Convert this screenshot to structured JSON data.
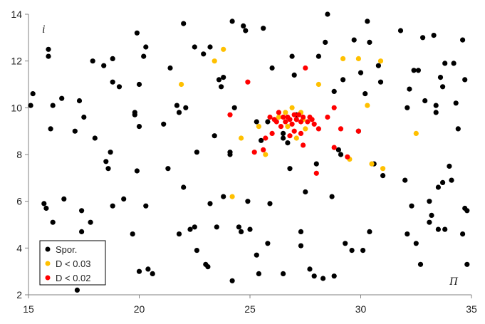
{
  "chart_data": {
    "type": "scatter",
    "xlabel": "Π",
    "ylabel": "i",
    "xlim": [
      15,
      35
    ],
    "ylim": [
      2,
      14
    ],
    "xticks": [
      15,
      20,
      25,
      30,
      35
    ],
    "yticks": [
      2,
      4,
      6,
      8,
      10,
      12,
      14
    ],
    "grid": false,
    "legend_placement": "bottom-left",
    "series": [
      {
        "name": "Spor.",
        "color": "#000000",
        "points": [
          [
            15.1,
            10.1
          ],
          [
            15.2,
            10.6
          ],
          [
            15.7,
            5.9
          ],
          [
            15.8,
            5.7
          ],
          [
            15.9,
            12.5
          ],
          [
            15.9,
            12.2
          ],
          [
            16.0,
            9.1
          ],
          [
            16.1,
            10.1
          ],
          [
            16.1,
            5.1
          ],
          [
            16.5,
            10.4
          ],
          [
            16.6,
            6.1
          ],
          [
            17.1,
            9.0
          ],
          [
            17.2,
            2.2
          ],
          [
            17.3,
            10.3
          ],
          [
            17.4,
            4.7
          ],
          [
            17.4,
            5.6
          ],
          [
            17.5,
            9.6
          ],
          [
            17.8,
            5.1
          ],
          [
            17.9,
            12.0
          ],
          [
            18.0,
            8.7
          ],
          [
            18.4,
            11.8
          ],
          [
            18.5,
            7.7
          ],
          [
            18.6,
            7.4
          ],
          [
            18.7,
            8.1
          ],
          [
            18.8,
            12.1
          ],
          [
            18.8,
            11.1
          ],
          [
            18.8,
            5.8
          ],
          [
            19.1,
            10.9
          ],
          [
            19.3,
            6.1
          ],
          [
            19.7,
            4.6
          ],
          [
            19.8,
            9.8
          ],
          [
            19.8,
            9.7
          ],
          [
            19.9,
            13.2
          ],
          [
            19.9,
            7.3
          ],
          [
            20.0,
            11.0
          ],
          [
            20.0,
            9.2
          ],
          [
            20.0,
            3.0
          ],
          [
            20.2,
            12.2
          ],
          [
            20.3,
            12.6
          ],
          [
            20.3,
            5.8
          ],
          [
            20.4,
            3.1
          ],
          [
            20.6,
            2.9
          ],
          [
            21.1,
            9.3
          ],
          [
            21.3,
            7.4
          ],
          [
            21.4,
            11.7
          ],
          [
            21.8,
            4.6
          ],
          [
            21.7,
            10.1
          ],
          [
            21.8,
            9.8
          ],
          [
            22.0,
            13.6
          ],
          [
            22.0,
            6.6
          ],
          [
            22.1,
            10.0
          ],
          [
            22.3,
            4.8
          ],
          [
            22.5,
            4.9
          ],
          [
            22.5,
            12.6
          ],
          [
            22.6,
            8.1
          ],
          [
            22.6,
            3.9
          ],
          [
            22.9,
            12.3
          ],
          [
            23.0,
            3.3
          ],
          [
            23.1,
            3.2
          ],
          [
            23.2,
            12.6
          ],
          [
            23.2,
            5.9
          ],
          [
            23.4,
            8.8
          ],
          [
            23.5,
            4.9
          ],
          [
            23.6,
            11.2
          ],
          [
            23.7,
            10.9
          ],
          [
            23.8,
            11.3
          ],
          [
            23.8,
            6.2
          ],
          [
            24.1,
            8.0
          ],
          [
            24.1,
            8.1
          ],
          [
            24.2,
            2.6
          ],
          [
            24.2,
            13.7
          ],
          [
            24.3,
            10.0
          ],
          [
            24.5,
            4.9
          ],
          [
            24.6,
            4.7
          ],
          [
            24.7,
            13.5
          ],
          [
            24.8,
            13.3
          ],
          [
            24.9,
            6.0
          ],
          [
            25.0,
            4.8
          ],
          [
            25.3,
            9.4
          ],
          [
            25.3,
            3.7
          ],
          [
            25.4,
            2.9
          ],
          [
            25.5,
            8.6
          ],
          [
            25.6,
            13.4
          ],
          [
            25.8,
            9.4
          ],
          [
            25.8,
            4.2
          ],
          [
            25.9,
            5.9
          ],
          [
            26.0,
            11.7
          ],
          [
            26.5,
            8.9
          ],
          [
            26.5,
            8.7
          ],
          [
            26.5,
            2.9
          ],
          [
            26.7,
            8.5
          ],
          [
            26.8,
            7.4
          ],
          [
            26.9,
            12.2
          ],
          [
            27.0,
            11.4
          ],
          [
            27.1,
            9.7
          ],
          [
            27.3,
            4.7
          ],
          [
            27.3,
            4.1
          ],
          [
            27.5,
            6.4
          ],
          [
            27.7,
            3.1
          ],
          [
            27.9,
            2.8
          ],
          [
            28.0,
            7.6
          ],
          [
            28.1,
            12.2
          ],
          [
            28.3,
            2.7
          ],
          [
            28.4,
            12.8
          ],
          [
            28.5,
            14.0
          ],
          [
            28.7,
            6.2
          ],
          [
            28.8,
            10.7
          ],
          [
            28.8,
            2.8
          ],
          [
            29.0,
            8.2
          ],
          [
            29.1,
            8.0
          ],
          [
            29.2,
            11.2
          ],
          [
            29.3,
            4.2
          ],
          [
            29.6,
            3.9
          ],
          [
            29.7,
            12.9
          ],
          [
            29.9,
            9.0
          ],
          [
            30.0,
            11.5
          ],
          [
            30.1,
            3.9
          ],
          [
            30.2,
            10.6
          ],
          [
            30.3,
            13.7
          ],
          [
            30.4,
            12.8
          ],
          [
            30.4,
            4.7
          ],
          [
            30.6,
            7.6
          ],
          [
            30.8,
            11.8
          ],
          [
            30.9,
            11.1
          ],
          [
            31.0,
            7.1
          ],
          [
            31.8,
            13.3
          ],
          [
            32.0,
            6.9
          ],
          [
            32.1,
            10.0
          ],
          [
            32.1,
            4.6
          ],
          [
            32.2,
            10.8
          ],
          [
            32.3,
            5.8
          ],
          [
            32.4,
            11.6
          ],
          [
            32.5,
            4.2
          ],
          [
            32.6,
            11.6
          ],
          [
            32.7,
            3.3
          ],
          [
            32.8,
            13.0
          ],
          [
            32.9,
            10.3
          ],
          [
            33.1,
            5.1
          ],
          [
            33.1,
            6.0
          ],
          [
            33.2,
            5.4
          ],
          [
            33.3,
            13.1
          ],
          [
            33.4,
            10.1
          ],
          [
            33.4,
            9.8
          ],
          [
            33.5,
            4.8
          ],
          [
            33.5,
            6.6
          ],
          [
            33.6,
            11.3
          ],
          [
            33.7,
            10.9
          ],
          [
            33.7,
            6.8
          ],
          [
            33.8,
            11.9
          ],
          [
            33.8,
            4.8
          ],
          [
            34.0,
            7.5
          ],
          [
            34.1,
            6.9
          ],
          [
            34.2,
            11.9
          ],
          [
            34.3,
            10.2
          ],
          [
            34.4,
            9.1
          ],
          [
            34.6,
            12.9
          ],
          [
            34.6,
            4.6
          ],
          [
            34.7,
            11.2
          ],
          [
            34.7,
            5.7
          ],
          [
            34.8,
            5.6
          ],
          [
            34.8,
            3.3
          ]
        ]
      },
      {
        "name": "D < 0.03",
        "color": "#ffc000",
        "points": [
          [
            21.9,
            11.0
          ],
          [
            23.4,
            12.0
          ],
          [
            23.8,
            12.5
          ],
          [
            24.2,
            6.2
          ],
          [
            24.6,
            8.7
          ],
          [
            25.4,
            9.2
          ],
          [
            25.7,
            8.0
          ],
          [
            26.3,
            9.6
          ],
          [
            26.6,
            9.8
          ],
          [
            26.7,
            9.2
          ],
          [
            26.9,
            10.0
          ],
          [
            27.1,
            8.7
          ],
          [
            27.3,
            9.8
          ],
          [
            27.4,
            9.5
          ],
          [
            27.5,
            9.1
          ],
          [
            28.1,
            11.0
          ],
          [
            29.2,
            12.1
          ],
          [
            29.5,
            7.8
          ],
          [
            29.9,
            12.1
          ],
          [
            30.3,
            10.1
          ],
          [
            30.5,
            7.6
          ],
          [
            30.9,
            12.0
          ],
          [
            31.0,
            7.4
          ],
          [
            32.5,
            8.9
          ]
        ]
      },
      {
        "name": "D < 0.02",
        "color": "#ff0000",
        "points": [
          [
            24.1,
            9.7
          ],
          [
            24.9,
            11.1
          ],
          [
            25.2,
            8.1
          ],
          [
            25.6,
            8.2
          ],
          [
            25.7,
            8.7
          ],
          [
            25.9,
            9.6
          ],
          [
            26.0,
            8.9
          ],
          [
            26.1,
            9.5
          ],
          [
            26.2,
            9.4
          ],
          [
            26.3,
            9.8
          ],
          [
            26.4,
            9.2
          ],
          [
            26.5,
            9.6
          ],
          [
            26.6,
            9.4
          ],
          [
            26.7,
            9.6
          ],
          [
            26.8,
            9.5
          ],
          [
            26.8,
            8.8
          ],
          [
            26.9,
            9.3
          ],
          [
            27.0,
            9.7
          ],
          [
            27.0,
            9.0
          ],
          [
            27.1,
            9.5
          ],
          [
            27.2,
            9.7
          ],
          [
            27.3,
            9.4
          ],
          [
            27.3,
            8.9
          ],
          [
            27.4,
            9.6
          ],
          [
            27.4,
            8.4
          ],
          [
            27.5,
            11.7
          ],
          [
            27.6,
            9.4
          ],
          [
            27.7,
            9.6
          ],
          [
            27.8,
            9.5
          ],
          [
            27.9,
            9.3
          ],
          [
            28.0,
            7.2
          ],
          [
            28.1,
            9.1
          ],
          [
            28.5,
            9.6
          ],
          [
            28.8,
            10.0
          ],
          [
            28.8,
            8.3
          ],
          [
            29.1,
            9.1
          ],
          [
            29.4,
            7.9
          ],
          [
            29.9,
            9.0
          ]
        ]
      }
    ]
  }
}
